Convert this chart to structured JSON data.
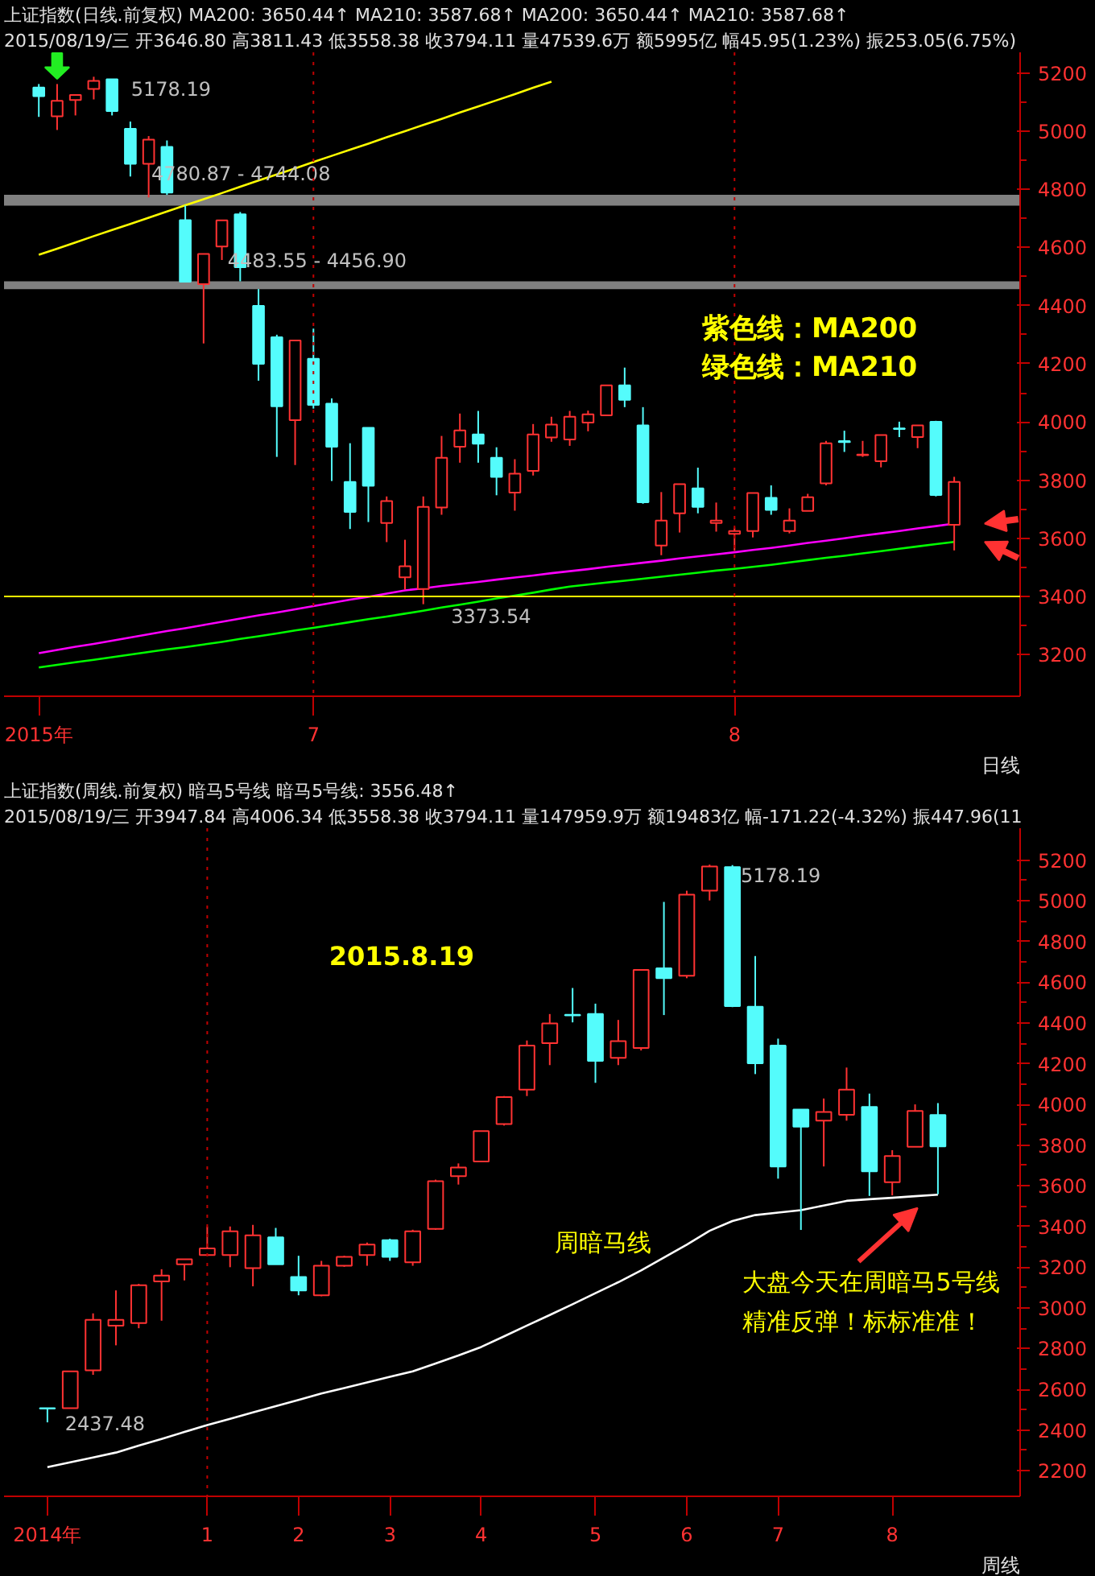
{
  "chart_data": [
    {
      "type": "candlestick",
      "title": "上证指数(日线.前复权) MA200: 3650.44↑ MA210: 3587.68↑ MA200: 3650.44↑ MA210: 3587.68↑",
      "subtitle": "2015/08/19/三 开3646.80 高3811.43 低3558.38 收3794.11 量47539.6万 额5995亿 幅45.95(1.23%) 振253.05(6.75%)",
      "categories": [
        "2015年",
        null,
        null,
        null,
        null,
        null,
        null,
        null,
        null,
        null,
        null,
        null,
        null,
        null,
        null,
        "7",
        null,
        null,
        null,
        null,
        null,
        null,
        null,
        null,
        null,
        null,
        null,
        null,
        null,
        null,
        null,
        null,
        null,
        null,
        null,
        null,
        null,
        null,
        "8",
        null,
        null,
        null,
        null,
        null,
        null,
        null,
        null,
        null,
        null,
        null,
        null
      ],
      "ohlc": [
        [
          5150,
          5162,
          5049,
          5120
        ],
        [
          5051,
          5162,
          5004,
          5104
        ],
        [
          5107,
          5124,
          5054,
          5124
        ],
        [
          5145,
          5187,
          5109,
          5173
        ],
        [
          5178,
          5178.19,
          5054,
          5069
        ],
        [
          5008,
          5033,
          4844,
          4888
        ],
        [
          4888,
          4983,
          4772,
          4971
        ],
        [
          4946,
          4968,
          4780.87,
          4789
        ],
        [
          4694,
          4744.08,
          4482,
          4482
        ],
        [
          4474,
          4578,
          4270,
          4578
        ],
        [
          4603,
          4693,
          4557,
          4693
        ],
        [
          4714,
          4722,
          4483.55,
          4532
        ],
        [
          4399,
          4456.9,
          4142,
          4200
        ],
        [
          4291,
          4300,
          3880,
          4054
        ],
        [
          4006,
          4280,
          3852,
          4280
        ],
        [
          4217,
          4321,
          4046,
          4059
        ],
        [
          4063,
          4081,
          3797,
          3915
        ],
        [
          3794,
          3927,
          3632,
          3691
        ],
        [
          3980,
          3980,
          3656,
          3781
        ],
        [
          3653,
          3744,
          3587,
          3728
        ],
        [
          3466,
          3595,
          3424,
          3504
        ],
        [
          3426,
          3744,
          3373.54,
          3708
        ],
        [
          3706,
          3952,
          3681,
          3877
        ],
        [
          3915,
          4029,
          3860,
          3971
        ],
        [
          3957,
          4038,
          3860,
          3925
        ],
        [
          3877,
          3913,
          3748,
          3811
        ],
        [
          3757,
          3872,
          3695,
          3822
        ],
        [
          3832,
          3993,
          3816,
          3957
        ],
        [
          3947,
          4018,
          3932,
          3991
        ],
        [
          3940,
          4038,
          3918,
          4018
        ],
        [
          3998,
          4039,
          3968,
          4026
        ],
        [
          4023,
          4126,
          4023,
          4126
        ],
        [
          4126,
          4187,
          4051,
          4076
        ],
        [
          3988,
          4051,
          3719,
          3724
        ],
        [
          3575,
          3759,
          3542,
          3661
        ],
        [
          3686,
          3786,
          3620,
          3786
        ],
        [
          3772,
          3843,
          3686,
          3708
        ],
        [
          3653,
          3723,
          3623,
          3661
        ],
        [
          3615,
          3637,
          3557,
          3625
        ],
        [
          3625,
          3756,
          3603,
          3756
        ],
        [
          3739,
          3782,
          3681,
          3698
        ],
        [
          3625,
          3703,
          3617,
          3661
        ],
        [
          3694,
          3753,
          3694,
          3741
        ],
        [
          3789,
          3935,
          3782,
          3927
        ],
        [
          3934,
          3970,
          3897,
          3931
        ],
        [
          3886,
          3935,
          3880,
          3888
        ],
        [
          3865,
          3955,
          3844,
          3955
        ],
        [
          3978,
          4001,
          3948,
          3976
        ],
        [
          3948,
          3988,
          3910,
          3988
        ],
        [
          4001,
          4004,
          3744,
          3749
        ],
        [
          3646.8,
          3811.43,
          3558.38,
          3794.11
        ]
      ],
      "series": [
        {
          "type": "line",
          "color": "#ff00ff",
          "values": [
            3205,
            3216,
            3227,
            3237,
            3248,
            3259,
            3270,
            3281,
            3291,
            3302,
            3313,
            3324,
            3335,
            3345,
            3356,
            3367,
            3378,
            3389,
            3399,
            3410,
            3421,
            3428,
            3436,
            3443,
            3450,
            3458,
            3465,
            3472,
            3480,
            3487,
            3494,
            3502,
            3509,
            3516,
            3523,
            3531,
            3538,
            3545,
            3552,
            3560,
            3567,
            3575,
            3584,
            3592,
            3600,
            3609,
            3617,
            3625,
            3634,
            3642,
            3650.44
          ]
        },
        {
          "type": "line",
          "color": "#00ff00",
          "values": [
            3156,
            3165,
            3174,
            3182,
            3191,
            3200,
            3209,
            3218,
            3226,
            3235,
            3244,
            3254,
            3263,
            3273,
            3283,
            3292,
            3302,
            3312,
            3322,
            3331,
            3341,
            3351,
            3362,
            3372,
            3382,
            3393,
            3403,
            3413,
            3424,
            3434,
            3441,
            3448,
            3454,
            3461,
            3468,
            3475,
            3482,
            3489,
            3495,
            3502,
            3509,
            3517,
            3525,
            3533,
            3540,
            3548,
            3556,
            3564,
            3572,
            3580,
            3587.68
          ]
        },
        {
          "type": "line",
          "color": "#ffff00",
          "values": [
            4575,
            4596,
            4617,
            4639,
            4660,
            4681,
            4702,
            4724,
            4745,
            4766,
            4787,
            4809,
            4830,
            4851,
            4872,
            4894,
            4915,
            4936,
            4957,
            4979,
            5000,
            5021,
            5042,
            5064,
            5085,
            5106,
            5127,
            5149,
            5170,
            null,
            null,
            null,
            null,
            null,
            null,
            null,
            null,
            null,
            null,
            null,
            null,
            null,
            null,
            null,
            null,
            null,
            null,
            null,
            null,
            null,
            null
          ]
        }
      ],
      "ylim": [
        3057,
        5271
      ],
      "yticks": [
        3200,
        3400,
        3600,
        3800,
        4000,
        4200,
        4400,
        4600,
        4800,
        5000,
        5200
      ],
      "ref_lines": [
        {
          "axis": "y",
          "value": 3400,
          "color": "#ffff00",
          "line_style": "solid"
        },
        {
          "axis": "x",
          "value": "7",
          "color": "#c00000",
          "line_style": "dotted"
        },
        {
          "axis": "x",
          "value": "8",
          "color": "#c00000",
          "line_style": "dotted"
        }
      ],
      "bands": [
        {
          "axis": "y",
          "from": 4744.08,
          "to": 4780.87,
          "label": "4780.87 - 4744.08",
          "color": "#808080"
        },
        {
          "axis": "y",
          "from": 4456.9,
          "to": 4483.55,
          "label": "4483.55 - 4456.90",
          "color": "#808080"
        }
      ],
      "annotations": [
        "紫色线：MA200",
        "绿色线：MA210",
        "日线",
        "5178.19",
        "3373.54"
      ]
    },
    {
      "type": "candlestick",
      "title": "上证指数(周线.前复权) 暗马5号线 暗马5号线: 3556.48↑",
      "subtitle": "2015/08/19/三 开3947.84 高4006.34 低3558.38 收3794.11 量147959.9万 额19483亿 幅-171.22(-4.32%) 振447.96(11",
      "categories": [
        "2014年",
        null,
        null,
        null,
        null,
        null,
        null,
        "1",
        null,
        null,
        null,
        "2",
        null,
        null,
        null,
        "3",
        null,
        null,
        null,
        "4",
        null,
        null,
        null,
        null,
        "5",
        null,
        null,
        null,
        "6",
        null,
        null,
        null,
        "7",
        null,
        null,
        null,
        null,
        "8",
        null,
        null
      ],
      "ohlc": [
        [
          2507,
          2508,
          2437.48,
          2505
        ],
        [
          2507,
          2688,
          2507,
          2688
        ],
        [
          2693,
          2973,
          2671,
          2941
        ],
        [
          2913,
          3086,
          2816,
          2941
        ],
        [
          2925,
          3118,
          2900,
          3111
        ],
        [
          3130,
          3190,
          2937,
          3159
        ],
        [
          3214,
          3239,
          3135,
          3239
        ],
        [
          3260,
          3400,
          3260,
          3292
        ],
        [
          3260,
          3400,
          3200,
          3376
        ],
        [
          3195,
          3408,
          3106,
          3357
        ],
        [
          3347,
          3393,
          3214,
          3214
        ],
        [
          3152,
          3256,
          3062,
          3086
        ],
        [
          3062,
          3231,
          3057,
          3207
        ],
        [
          3207,
          3256,
          3202,
          3251
        ],
        [
          3260,
          3321,
          3207,
          3311
        ],
        [
          3333,
          3340,
          3231,
          3251
        ],
        [
          3224,
          3384,
          3207,
          3376
        ],
        [
          3388,
          3630,
          3384,
          3623
        ],
        [
          3647,
          3710,
          3606,
          3690
        ],
        [
          3719,
          3869,
          3719,
          3869
        ],
        [
          3903,
          4041,
          3896,
          4036
        ],
        [
          4072,
          4314,
          4041,
          4289
        ],
        [
          4301,
          4444,
          4193,
          4398
        ],
        [
          4440,
          4572,
          4403,
          4437
        ],
        [
          4444,
          4495,
          4106,
          4214
        ],
        [
          4229,
          4415,
          4193,
          4311
        ],
        [
          4277,
          4661,
          4265,
          4661
        ],
        [
          4669,
          4995,
          4439,
          4620
        ],
        [
          4632,
          5050,
          4620,
          5031
        ],
        [
          5050,
          5178.19,
          5002,
          5169
        ],
        [
          5166,
          5176,
          4478,
          4483
        ],
        [
          4480,
          4729,
          4149,
          4202
        ],
        [
          4289,
          4323,
          3635,
          3695
        ],
        [
          3975,
          3975,
          3383,
          3891
        ],
        [
          3920,
          4029,
          3695,
          3963
        ],
        [
          3949,
          4181,
          3920,
          4072
        ],
        [
          3987,
          4053,
          3550,
          3671
        ],
        [
          3618,
          3775,
          3553,
          3746
        ],
        [
          3792,
          4000,
          3792,
          3968
        ],
        [
          3947.84,
          4006.34,
          3558.38,
          3794.11
        ]
      ],
      "series": [
        {
          "type": "line",
          "color": "#ffffff",
          "values": [
            2217,
            2241,
            2265,
            2289,
            2323,
            2356,
            2390,
            2424,
            2455,
            2486,
            2517,
            2548,
            2579,
            2606,
            2634,
            2661,
            2688,
            2727,
            2766,
            2808,
            2860,
            2913,
            2965,
            3018,
            3072,
            3126,
            3184,
            3247,
            3311,
            3379,
            3427,
            3456,
            3468,
            3480,
            3503,
            3526,
            3534,
            3541,
            3549,
            3556.48
          ]
        }
      ],
      "ylim": [
        2074,
        5357
      ],
      "yticks": [
        2200,
        2400,
        2600,
        2800,
        3000,
        3200,
        3400,
        3600,
        3800,
        4000,
        4200,
        4400,
        4600,
        4800,
        5000,
        5200
      ],
      "ref_lines": [
        {
          "axis": "x",
          "value": "1",
          "color": "#c00000",
          "line_style": "dotted"
        }
      ],
      "annotations": [
        "2015.8.19",
        "周暗马线",
        "大盘今天在周暗马5号线",
        "精准反弹！标标准准！",
        "周线",
        "5178.19",
        "2437.48"
      ]
    }
  ]
}
